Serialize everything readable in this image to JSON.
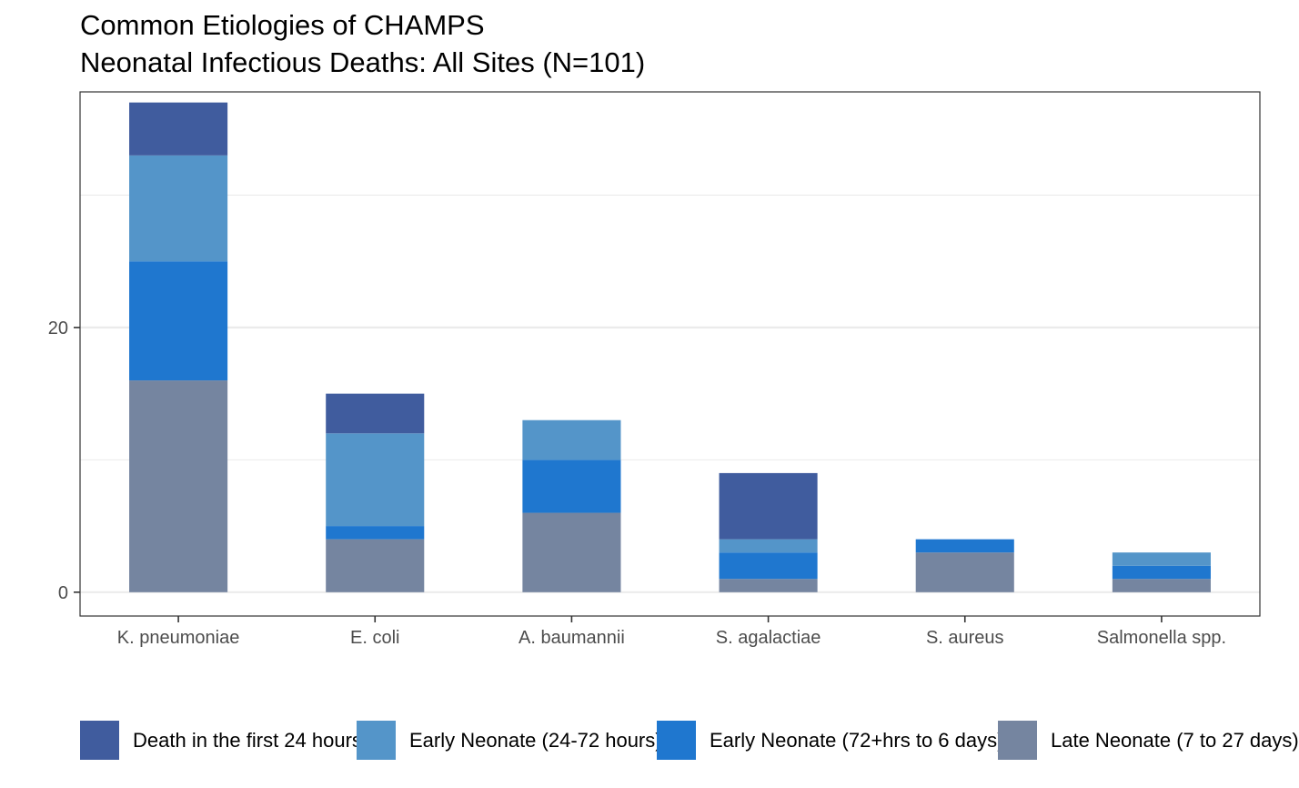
{
  "chart_data": {
    "type": "bar",
    "stacked": true,
    "title": "Common Etiologies of CHAMPS",
    "subtitle": "Neonatal Infectious Deaths: All Sites (N=101)",
    "xlabel": "",
    "ylabel": "",
    "categories": [
      "K. pneumoniae",
      "E. coli",
      "A. baumannii",
      "S. agalactiae",
      "S. aureus",
      "Salmonella spp."
    ],
    "y_ticks": [
      0,
      20
    ],
    "ylim": [
      -1.8,
      37.8
    ],
    "grid": true,
    "legend_position": "bottom",
    "series": [
      {
        "name": "Late Neonate (7 to 27 days)",
        "color": "#7585A0",
        "values": [
          16,
          4,
          6,
          1,
          3,
          1
        ]
      },
      {
        "name": "Early Neonate (72+hrs to 6 days)",
        "color": "#1F77CF",
        "values": [
          9,
          1,
          4,
          2,
          1,
          1
        ]
      },
      {
        "name": "Early Neonate (24-72 hours)",
        "color": "#5495C9",
        "values": [
          8,
          7,
          3,
          1,
          0,
          1
        ]
      },
      {
        "name": "Death in the first 24 hours",
        "color": "#405C9E",
        "values": [
          4,
          3,
          0,
          5,
          0,
          0
        ]
      }
    ],
    "legend_order": [
      3,
      2,
      1,
      0
    ]
  }
}
